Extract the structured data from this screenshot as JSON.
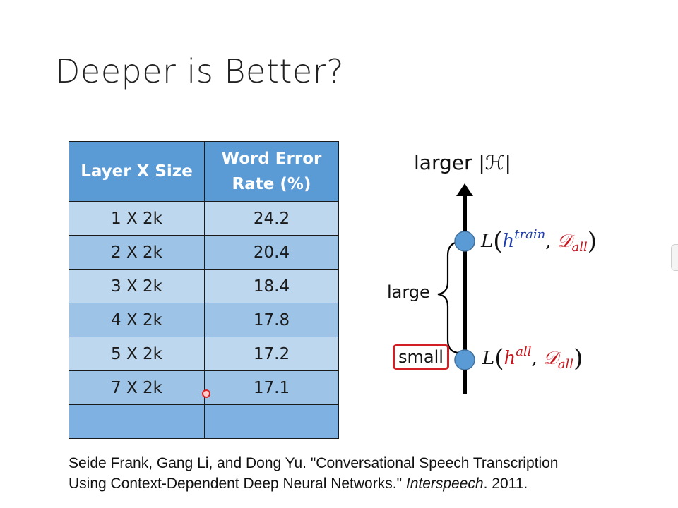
{
  "slide": {
    "title": "Deeper is Better?"
  },
  "table": {
    "headers": [
      "Layer X Size",
      "Word Error Rate (%)"
    ],
    "rows": [
      {
        "layer": "1 X 2k",
        "wer": "24.2"
      },
      {
        "layer": "2 X 2k",
        "wer": "20.4"
      },
      {
        "layer": "3 X 2k",
        "wer": "18.4"
      },
      {
        "layer": "4 X 2k",
        "wer": "17.8"
      },
      {
        "layer": "5 X 2k",
        "wer": "17.2"
      },
      {
        "layer": "7 X 2k",
        "wer": "17.1"
      },
      {
        "layer": "",
        "wer": ""
      }
    ]
  },
  "diagram": {
    "axis_label": "larger |ℋ|",
    "upper_point": {
      "L": "L",
      "h": "h",
      "h_sup": "train",
      "D": "𝒟",
      "D_sub": "all"
    },
    "lower_point": {
      "L": "L",
      "h": "h",
      "h_sup": "all",
      "D": "𝒟",
      "D_sub": "all"
    },
    "gap_label": "large",
    "lower_label": "small",
    "colors": {
      "point": "#5b9bd5",
      "highlight_box": "#d21f26",
      "h_blue": "#1f3ea8",
      "D_red": "#c8161d"
    }
  },
  "citation": {
    "line1": "Seide Frank, Gang Li, and Dong Yu. \"Conversational Speech Transcription",
    "line2_prefix": "Using Context-Dependent Deep Neural Networks.\" ",
    "venue": "Interspeech",
    "line2_suffix": ". 2011."
  }
}
